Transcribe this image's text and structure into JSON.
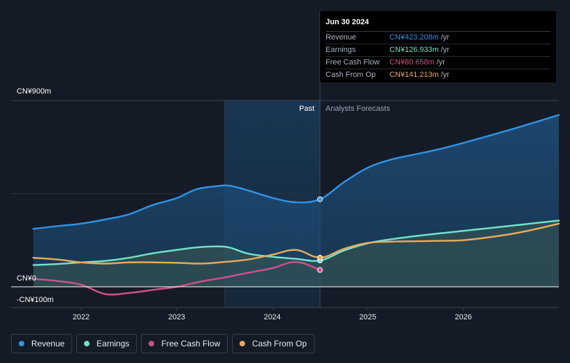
{
  "colors": {
    "revenue": "#2f93e6",
    "earnings": "#6ee3c9",
    "free_cash_flow": "#cf4f8a",
    "cash_from_op": "#e8a95b",
    "background": "#151b26"
  },
  "tooltip": {
    "date": "Jun 30 2024",
    "rows": [
      {
        "label": "Revenue",
        "value": "CN¥423.208m",
        "unit": "/yr",
        "color": "#2f93e6"
      },
      {
        "label": "Earnings",
        "value": "CN¥126.933m",
        "unit": "/yr",
        "color": "#6ee3c9"
      },
      {
        "label": "Free Cash Flow",
        "value": "CN¥80.658m",
        "unit": "/yr",
        "color": "#cf4f8a"
      },
      {
        "label": "Cash From Op",
        "value": "CN¥141.213m",
        "unit": "/yr",
        "color": "#e8a95b"
      }
    ]
  },
  "legend": [
    {
      "label": "Revenue",
      "color": "#2f93e6"
    },
    {
      "label": "Earnings",
      "color": "#6ee3c9"
    },
    {
      "label": "Free Cash Flow",
      "color": "#cf4f8a"
    },
    {
      "label": "Cash From Op",
      "color": "#e8a95b"
    }
  ],
  "chart_data": {
    "type": "line",
    "title": "",
    "xlabel": "",
    "ylabel": "",
    "y_unit": "CN¥m",
    "ylim": [
      -100,
      900
    ],
    "y_ticks": [
      {
        "value": 900,
        "label": "CN¥900m"
      },
      {
        "value": 0,
        "label": "CN¥0"
      },
      {
        "value": -100,
        "label": "-CN¥100m"
      }
    ],
    "xlim": [
      2021.5,
      2027.0
    ],
    "x_ticks": [
      {
        "value": 2022,
        "label": "2022"
      },
      {
        "value": 2023,
        "label": "2023"
      },
      {
        "value": 2024,
        "label": "2024"
      },
      {
        "value": 2025,
        "label": "2025"
      },
      {
        "value": 2026,
        "label": "2026"
      }
    ],
    "past_label": "Past",
    "forecast_label": "Analysts Forecasts",
    "divider_x": 2024.5,
    "highlight_start_x": 2023.5,
    "series": [
      {
        "name": "Revenue",
        "key": "revenue",
        "points": [
          [
            2021.5,
            280
          ],
          [
            2021.75,
            293
          ],
          [
            2022.0,
            305
          ],
          [
            2022.25,
            325
          ],
          [
            2022.5,
            350
          ],
          [
            2022.75,
            395
          ],
          [
            2023.0,
            428
          ],
          [
            2023.2,
            470
          ],
          [
            2023.4,
            485
          ],
          [
            2023.55,
            488
          ],
          [
            2023.75,
            465
          ],
          [
            2024.0,
            430
          ],
          [
            2024.25,
            408
          ],
          [
            2024.5,
            423
          ],
          [
            2024.75,
            505
          ],
          [
            2025.0,
            575
          ],
          [
            2025.25,
            615
          ],
          [
            2025.5,
            640
          ],
          [
            2025.75,
            665
          ],
          [
            2026.0,
            695
          ],
          [
            2026.5,
            760
          ],
          [
            2027.0,
            830
          ]
        ],
        "area": true
      },
      {
        "name": "Earnings",
        "key": "earnings",
        "points": [
          [
            2021.5,
            105
          ],
          [
            2021.75,
            110
          ],
          [
            2022.0,
            118
          ],
          [
            2022.25,
            125
          ],
          [
            2022.5,
            140
          ],
          [
            2022.75,
            162
          ],
          [
            2023.0,
            178
          ],
          [
            2023.2,
            190
          ],
          [
            2023.4,
            195
          ],
          [
            2023.55,
            190
          ],
          [
            2023.75,
            160
          ],
          [
            2024.0,
            145
          ],
          [
            2024.25,
            135
          ],
          [
            2024.5,
            127
          ],
          [
            2024.75,
            175
          ],
          [
            2025.0,
            210
          ],
          [
            2025.25,
            230
          ],
          [
            2025.5,
            245
          ],
          [
            2025.75,
            258
          ],
          [
            2026.0,
            270
          ],
          [
            2026.5,
            295
          ],
          [
            2027.0,
            320
          ]
        ],
        "area": true
      },
      {
        "name": "Cash From Op",
        "key": "cash_from_op",
        "points": [
          [
            2021.5,
            140
          ],
          [
            2021.75,
            132
          ],
          [
            2022.0,
            118
          ],
          [
            2022.25,
            112
          ],
          [
            2022.5,
            118
          ],
          [
            2022.75,
            118
          ],
          [
            2023.0,
            116
          ],
          [
            2023.25,
            112
          ],
          [
            2023.5,
            120
          ],
          [
            2023.75,
            132
          ],
          [
            2024.0,
            155
          ],
          [
            2024.25,
            178
          ],
          [
            2024.5,
            141
          ],
          [
            2024.75,
            183
          ],
          [
            2025.0,
            212
          ],
          [
            2025.25,
            218
          ],
          [
            2025.5,
            220
          ],
          [
            2025.75,
            222
          ],
          [
            2026.0,
            225
          ],
          [
            2026.25,
            238
          ],
          [
            2026.5,
            255
          ],
          [
            2026.75,
            278
          ],
          [
            2027.0,
            305
          ]
        ],
        "area": false
      },
      {
        "name": "Free Cash Flow",
        "key": "free_cash_flow",
        "points": [
          [
            2021.5,
            38
          ],
          [
            2021.75,
            28
          ],
          [
            2022.0,
            10
          ],
          [
            2022.25,
            -35
          ],
          [
            2022.5,
            -30
          ],
          [
            2022.75,
            -15
          ],
          [
            2023.0,
            0
          ],
          [
            2023.25,
            25
          ],
          [
            2023.5,
            45
          ],
          [
            2023.75,
            68
          ],
          [
            2024.0,
            90
          ],
          [
            2024.25,
            120
          ],
          [
            2024.5,
            81
          ]
        ],
        "area": false
      }
    ]
  }
}
